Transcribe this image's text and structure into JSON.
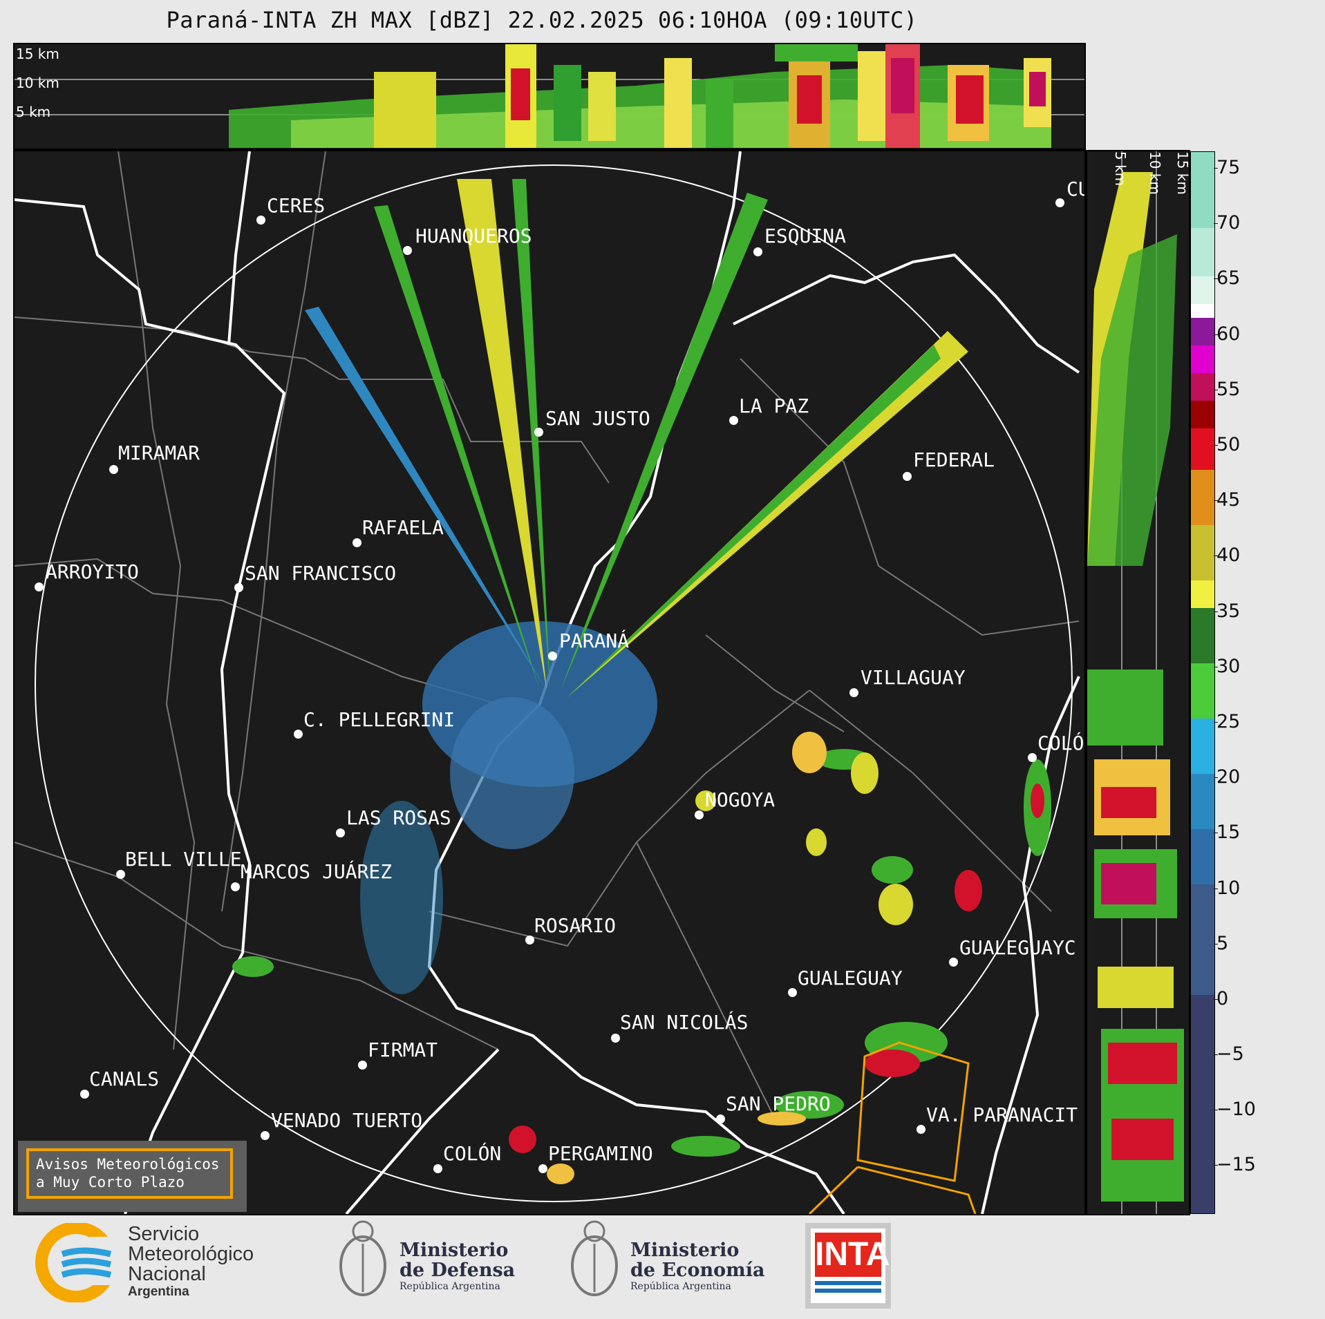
{
  "title": "Paraná-INTA ZH MAX [dBZ] 22.02.2025 06:10HOA (09:10UTC)",
  "height_labels_top": [
    "15 km",
    "10 km",
    "5 km"
  ],
  "height_labels_right": [
    "5 km",
    "10 km",
    "15 km"
  ],
  "colorbar": {
    "ticks": [
      "75",
      "70",
      "65",
      "60",
      "55",
      "50",
      "45",
      "40",
      "35",
      "30",
      "25",
      "20",
      "15",
      "10",
      "5",
      "0",
      "−5",
      "−10",
      "−15"
    ]
  },
  "cities": [
    {
      "name": "CERES"
    },
    {
      "name": "HUANQUEROS"
    },
    {
      "name": "ESQUINA"
    },
    {
      "name": "CU"
    },
    {
      "name": "SAN JUSTO"
    },
    {
      "name": "LA PAZ"
    },
    {
      "name": "MIRAMAR"
    },
    {
      "name": "FEDERAL"
    },
    {
      "name": "RAFAELA"
    },
    {
      "name": "ARROYITO"
    },
    {
      "name": "SAN FRANCISCO"
    },
    {
      "name": "PARANÁ"
    },
    {
      "name": "VILLAGUAY"
    },
    {
      "name": "C. PELLEGRINI"
    },
    {
      "name": "COLÓ"
    },
    {
      "name": "NOGOYA"
    },
    {
      "name": "LAS ROSAS"
    },
    {
      "name": "BELL VILLE"
    },
    {
      "name": "MARCOS JUÁREZ"
    },
    {
      "name": "ROSARIO"
    },
    {
      "name": "GUALEGUAYC"
    },
    {
      "name": "GUALEGUAY"
    },
    {
      "name": "SAN NICOLÁS"
    },
    {
      "name": "FIRMAT"
    },
    {
      "name": "CANALS"
    },
    {
      "name": "SAN PEDRO"
    },
    {
      "name": "VA. PARANACIT"
    },
    {
      "name": "VENADO TUERTO"
    },
    {
      "name": "COLÓN"
    },
    {
      "name": "PERGAMINO"
    }
  ],
  "warning_box": {
    "line1": "Avisos Meteorológicos",
    "line2": "a Muy Corto Plazo"
  },
  "logos": {
    "smn": {
      "line1": "Servicio",
      "line2": "Meteorológico",
      "line3": "Nacional",
      "line4": "Argentina"
    },
    "defensa": {
      "line1": "Ministerio",
      "line2": "de Defensa",
      "line3": "República Argentina"
    },
    "economia": {
      "line1": "Ministerio",
      "line2": "de Economía",
      "line3": "República Argentina"
    },
    "inta": {
      "text": "INTA"
    }
  }
}
